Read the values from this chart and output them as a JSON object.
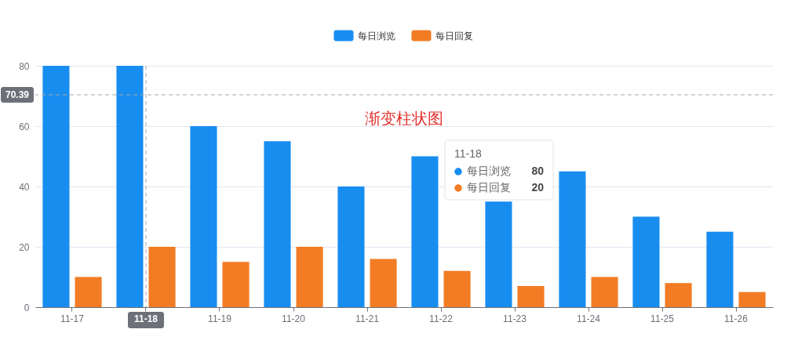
{
  "chart_data": {
    "type": "bar",
    "title": "渐变柱状图",
    "categories": [
      "11-17",
      "11-18",
      "11-19",
      "11-20",
      "11-21",
      "11-22",
      "11-23",
      "11-24",
      "11-25",
      "11-26"
    ],
    "series": [
      {
        "name": "每日浏览",
        "color": "#188df0",
        "values": [
          80,
          80,
          60,
          55,
          40,
          50,
          35,
          45,
          30,
          25
        ]
      },
      {
        "name": "每日回复",
        "color": "#f17c24",
        "values": [
          10,
          20,
          15,
          20,
          16,
          12,
          7,
          10,
          8,
          5
        ]
      }
    ],
    "ylim": [
      0,
      80
    ],
    "yticks": [
      0,
      20,
      40,
      60,
      80
    ],
    "grid": "y",
    "legend": "top",
    "ref_lines": [
      {
        "axis": "y",
        "value": 70.39,
        "label": "70.39",
        "line_style": "dashed",
        "color": "#a8a8a8"
      },
      {
        "axis": "x",
        "value": "11-18",
        "line_style": "dashed",
        "color": "#a8a8a8"
      }
    ],
    "annotations": [
      "11-18",
      "每日浏览",
      "80",
      "每日回复",
      "20"
    ]
  }
}
